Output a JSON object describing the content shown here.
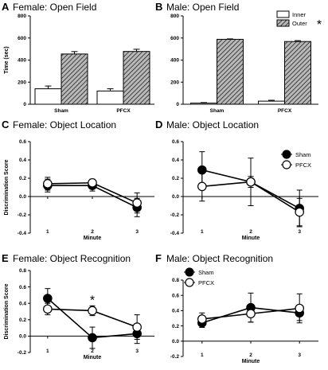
{
  "colors": {
    "axis": "#000000",
    "filled": "#000000",
    "open": "#ffffff",
    "hatch_bg": "#b8b8b8"
  },
  "chart_data": [
    {
      "id": "A",
      "letter": "A",
      "type": "bar",
      "title": "Female: Open Field",
      "categories": [
        "Sham",
        "PFCX"
      ],
      "series": [
        {
          "name": "Inner",
          "pattern": "open",
          "values": [
            140,
            120
          ],
          "errors": [
            25,
            20
          ]
        },
        {
          "name": "Outer",
          "pattern": "hatched",
          "values": [
            455,
            478
          ],
          "errors": [
            22,
            20
          ]
        }
      ],
      "ylabel": "Time (sec)",
      "xlabel": "",
      "ylim": [
        0,
        800
      ],
      "yticks": [
        0,
        200,
        400,
        600,
        800
      ],
      "legend": {
        "show": false
      },
      "annotations": []
    },
    {
      "id": "B",
      "letter": "B",
      "type": "bar",
      "title": "Male: Open Field",
      "categories": [
        "Sham",
        "PFCX"
      ],
      "series": [
        {
          "name": "Inner",
          "pattern": "open",
          "values": [
            10,
            28
          ],
          "errors": [
            5,
            8
          ]
        },
        {
          "name": "Outer",
          "pattern": "hatched",
          "values": [
            588,
            568
          ],
          "errors": [
            4,
            8
          ]
        }
      ],
      "ylabel": "",
      "xlabel": "",
      "ylim": [
        0,
        800
      ],
      "yticks": [
        0,
        200,
        400,
        600,
        800
      ],
      "legend": {
        "show": true,
        "position": "top-right"
      },
      "annotations": [
        {
          "text": "*",
          "near": "legend"
        }
      ]
    },
    {
      "id": "C",
      "letter": "C",
      "type": "line",
      "title": "Female: Object Location",
      "x": [
        1,
        2,
        3
      ],
      "series": [
        {
          "name": "Sham",
          "marker": "filled",
          "values": [
            0.12,
            0.12,
            -0.12
          ],
          "errors": [
            0.07,
            0.06,
            0.1
          ]
        },
        {
          "name": "PFCX",
          "marker": "open",
          "values": [
            0.14,
            0.15,
            -0.07
          ],
          "errors": [
            0.07,
            0.04,
            0.11
          ]
        }
      ],
      "ylabel": "Discrimination Score",
      "xlabel": "Minute",
      "ylim": [
        -0.4,
        0.6
      ],
      "yticks": [
        -0.4,
        -0.2,
        0.0,
        0.2,
        0.4,
        0.6
      ],
      "legend": {
        "show": false
      },
      "annotations": []
    },
    {
      "id": "D",
      "letter": "D",
      "type": "line",
      "title": "Male: Object Location",
      "x": [
        1,
        2,
        3
      ],
      "series": [
        {
          "name": "Sham",
          "marker": "filled",
          "values": [
            0.29,
            0.16,
            -0.13
          ],
          "errors": [
            0.2,
            0.26,
            0.2
          ]
        },
        {
          "name": "PFCX",
          "marker": "open",
          "values": [
            0.11,
            0.16,
            -0.17
          ],
          "errors": [
            0.16,
            0.06,
            0.15
          ]
        }
      ],
      "ylabel": "",
      "xlabel": "Minute",
      "ylim": [
        -0.4,
        0.6
      ],
      "yticks": [
        -0.4,
        -0.2,
        0.0,
        0.2,
        0.4,
        0.6
      ],
      "legend": {
        "show": true,
        "position": "top-right"
      },
      "annotations": []
    },
    {
      "id": "E",
      "letter": "E",
      "type": "line",
      "title": "Female: Object Recognition",
      "x": [
        1,
        2,
        3
      ],
      "series": [
        {
          "name": "Sham",
          "marker": "filled",
          "values": [
            0.46,
            -0.02,
            0.03
          ],
          "errors": [
            0.12,
            0.13,
            0.12
          ]
        },
        {
          "name": "PFCX",
          "marker": "open",
          "values": [
            0.33,
            0.31,
            0.11
          ],
          "errors": [
            0.07,
            0.06,
            0.15
          ]
        }
      ],
      "ylabel": "Discrimination Score",
      "xlabel": "Minute",
      "ylim": [
        -0.2,
        0.8
      ],
      "yticks": [
        -0.2,
        0.0,
        0.2,
        0.4,
        0.6,
        0.8
      ],
      "legend": {
        "show": false
      },
      "annotations": [
        {
          "text": "*",
          "x": 2
        }
      ]
    },
    {
      "id": "F",
      "letter": "F",
      "type": "line",
      "title": "Male: Object Recognition",
      "x": [
        1,
        2,
        3
      ],
      "series": [
        {
          "name": "Sham",
          "marker": "filled",
          "values": [
            0.24,
            0.44,
            0.37
          ],
          "errors": [
            0.06,
            0.19,
            0.1
          ]
        },
        {
          "name": "PFCX",
          "marker": "open",
          "values": [
            0.29,
            0.36,
            0.43
          ],
          "errors": [
            0.08,
            0.11,
            0.19
          ]
        }
      ],
      "ylabel": "",
      "xlabel": "Minute",
      "ylim": [
        -0.2,
        0.8
      ],
      "yticks": [
        -0.2,
        0.0,
        0.2,
        0.4,
        0.6,
        0.8
      ],
      "legend": {
        "show": true,
        "position": "top-left"
      },
      "annotations": []
    }
  ]
}
